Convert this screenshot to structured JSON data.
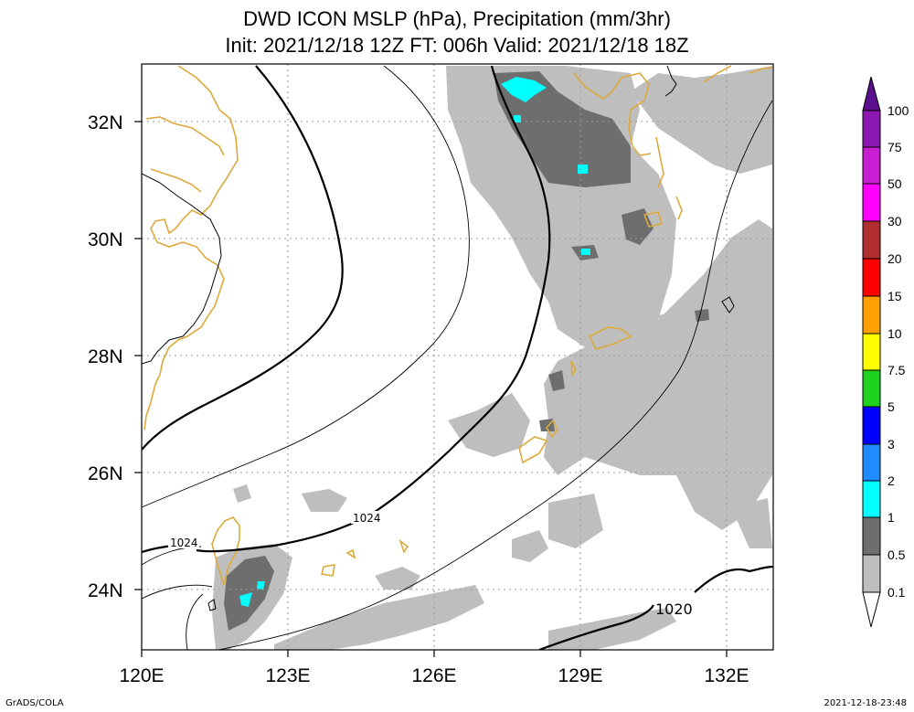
{
  "title": {
    "line1": "DWD ICON MSLP (hPa), Precipitation (mm/3hr)",
    "line2": "Init: 2021/12/18 12Z  FT: 006h  Valid: 2021/12/18 18Z"
  },
  "axes": {
    "lat_labels": [
      "32N",
      "30N",
      "28N",
      "26N",
      "24N"
    ],
    "lon_labels": [
      "120E",
      "123E",
      "126E",
      "129E",
      "132E"
    ]
  },
  "isobars": {
    "label_1024_a": "1024",
    "label_1024_b": "1024",
    "label_1020": "1020"
  },
  "legend": {
    "levels": [
      "100",
      "75",
      "50",
      "30",
      "20",
      "15",
      "10",
      "7.5",
      "5",
      "3",
      "2",
      "1",
      "0.5",
      "0.1"
    ],
    "colors": {
      "c100": "#5a0d8c",
      "c75": "#8c18b4",
      "c50": "#c81ed2",
      "c30": "#ff00ff",
      "c20": "#b22d2d",
      "c15": "#ff0000",
      "c10": "#ffa000",
      "c7_5": "#ffff00",
      "c5": "#1ed21e",
      "c3": "#0000ff",
      "c2": "#1e8cff",
      "c1": "#00ffff",
      "c0_5": "#6e6e6e",
      "c0_1": "#bebebe"
    }
  },
  "footer": {
    "left": "GrADS/COLA",
    "right": "2021-12-18-23:48"
  }
}
